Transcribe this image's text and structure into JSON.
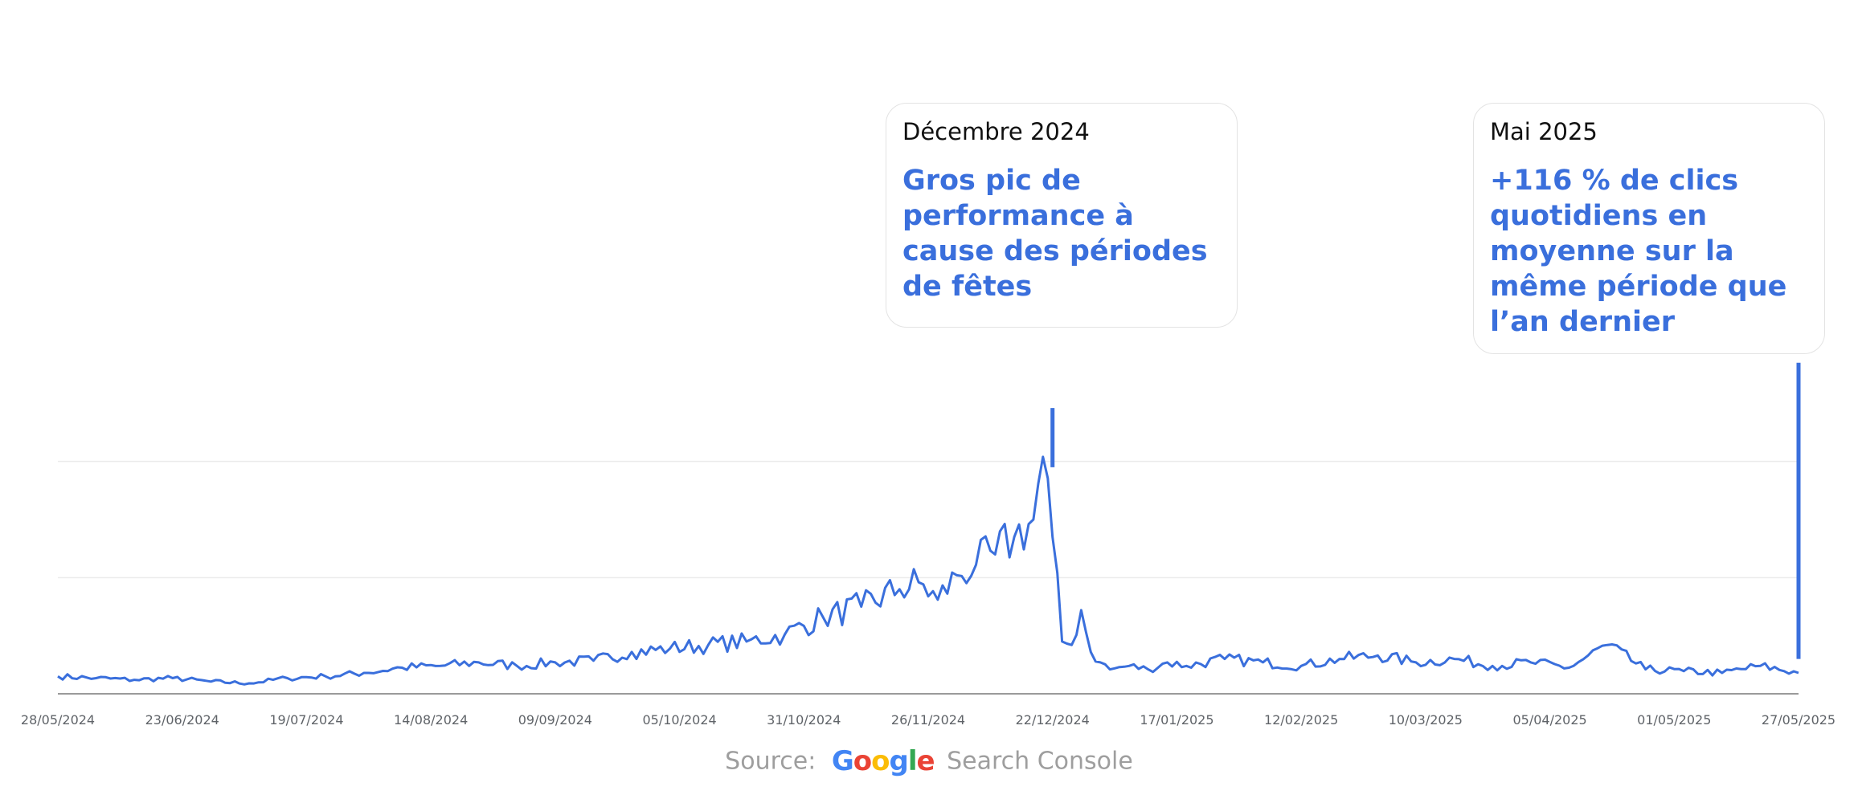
{
  "colors": {
    "line": "#3a6fdc",
    "grid": "#ebebeb",
    "axis": "#9a9a9a",
    "tick_text": "#5f6368",
    "callout_title": "#111111",
    "callout_body": "#3a6fdc",
    "source_text": "#9e9e9e",
    "google_blue": "#4285F4",
    "google_red": "#EA4335",
    "google_yellow": "#FBBC05",
    "google_green": "#34A853"
  },
  "callouts": [
    {
      "title": "Décembre 2024",
      "body": "Gros pic de performance à cause des périodes de fêtes",
      "x": "2024-12-22",
      "connector_y": [
        0.65,
        0.82
      ]
    },
    {
      "title": "Mai 2025",
      "body": "+116 % de clics quotidiens en moyenne sur la même période que l’an dernier",
      "x": "2025-05-27",
      "connector_y": [
        0.1,
        0.95
      ]
    }
  ],
  "source": {
    "prefix": "Source:",
    "logo_letters": [
      "G",
      "o",
      "o",
      "g",
      "l",
      "e"
    ],
    "product": "Search Console"
  },
  "chart_data": {
    "type": "line",
    "title": "",
    "xlabel": "",
    "ylabel": "",
    "x_start": "2024-05-28",
    "x_end": "2025-05-27",
    "ylim": [
      0,
      1
    ],
    "y_axis_labels_shown": false,
    "grid": "horizontal",
    "gridlines_y": [
      0.3333,
      0.6667
    ],
    "x_ticks": [
      "28/05/2024",
      "23/06/2024",
      "19/07/2024",
      "14/08/2024",
      "09/09/2024",
      "05/10/2024",
      "31/10/2024",
      "26/11/2024",
      "22/12/2024",
      "17/01/2025",
      "12/02/2025",
      "10/03/2025",
      "05/04/2025",
      "01/05/2025",
      "27/05/2025"
    ],
    "series": [
      {
        "name": "",
        "sample_days": [
          0,
          8,
          16,
          24,
          32,
          40,
          48,
          56,
          64,
          72,
          80,
          88,
          96,
          104,
          112,
          120,
          128,
          136,
          144,
          152,
          160,
          168,
          176,
          180,
          184,
          188,
          192,
          196,
          200,
          204,
          206,
          208,
          210,
          212,
          214,
          216,
          218,
          220,
          224,
          228,
          232,
          236,
          244,
          252,
          260,
          268,
          276,
          284,
          292,
          300,
          308,
          316,
          324,
          332,
          340,
          348,
          356,
          364
        ],
        "values": [
          0.05,
          0.045,
          0.04,
          0.045,
          0.035,
          0.03,
          0.045,
          0.05,
          0.06,
          0.075,
          0.08,
          0.09,
          0.08,
          0.09,
          0.095,
          0.12,
          0.13,
          0.14,
          0.15,
          0.17,
          0.22,
          0.25,
          0.3,
          0.32,
          0.27,
          0.34,
          0.37,
          0.4,
          0.45,
          0.5,
          0.68,
          0.45,
          0.15,
          0.14,
          0.24,
          0.12,
          0.09,
          0.07,
          0.08,
          0.07,
          0.09,
          0.08,
          0.1,
          0.09,
          0.08,
          0.1,
          0.11,
          0.09,
          0.1,
          0.08,
          0.09,
          0.075,
          0.14,
          0.07,
          0.065,
          0.06,
          0.08,
          0.06
        ]
      }
    ]
  }
}
